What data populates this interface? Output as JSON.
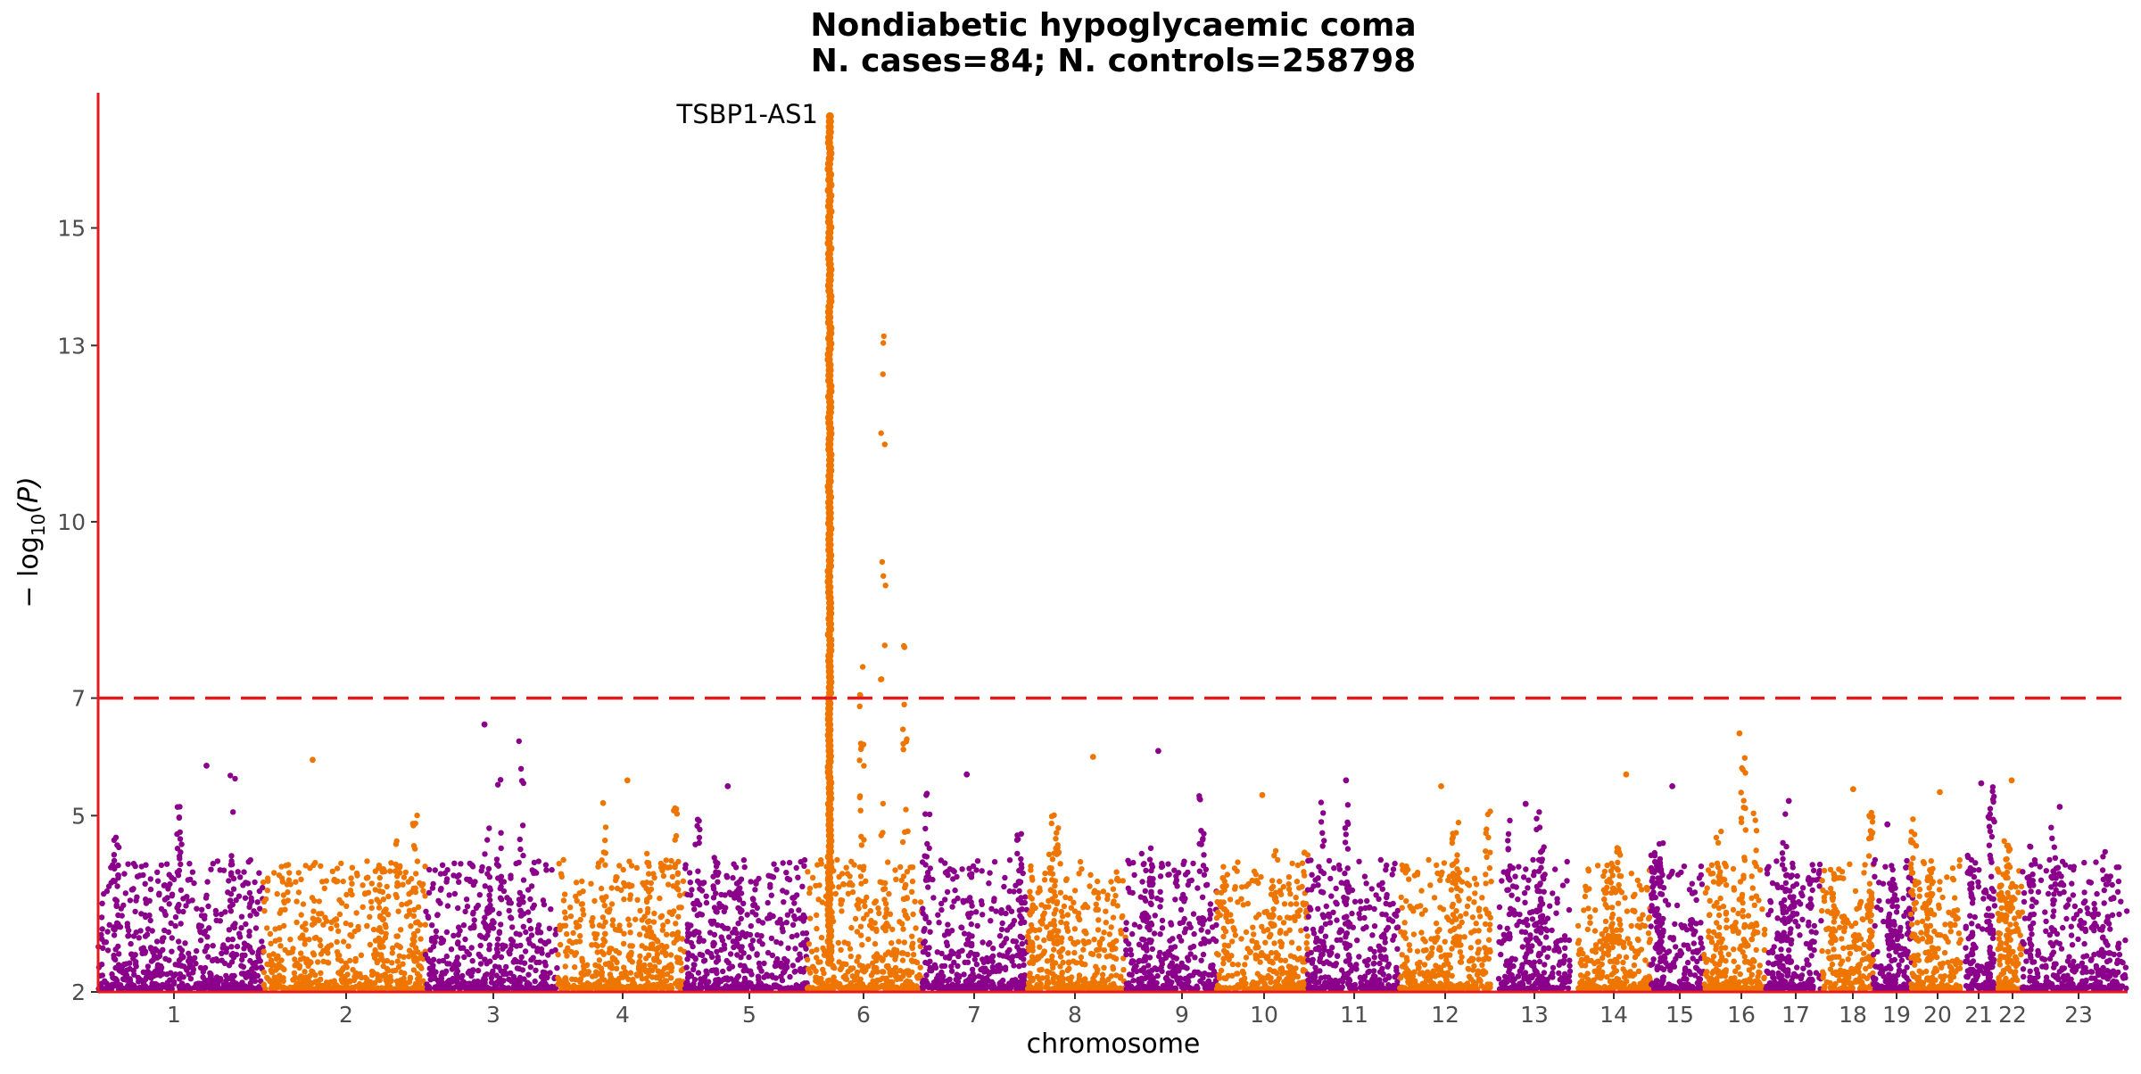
{
  "chart_data": {
    "type": "scatter",
    "subtype": "manhattan",
    "title": "Nondiabetic hypoglycaemic coma",
    "subtitle": "N. cases=84; N. controls=258798",
    "xlabel": "chromosome",
    "ylabel_main": "− log",
    "ylabel_sub": "10",
    "ylabel_var": "(P)",
    "y_scale": "-log10 transformed",
    "ylim": [
      2,
      17.3
    ],
    "y_ticks": [
      2,
      5,
      7,
      10,
      13,
      15
    ],
    "y_tick_labels": [
      "2",
      "5",
      "7",
      "10",
      "13",
      "15"
    ],
    "significance_line": 7,
    "colors": {
      "odd_chromosome": "#8B008B",
      "even_chromosome": "#EE7600",
      "threshold": "#e41a1c",
      "axis": "#e41a1c"
    },
    "chromosomes": [
      {
        "label": "1",
        "max": 5.85
      },
      {
        "label": "2",
        "max": 5.95
      },
      {
        "label": "3",
        "max": 6.55
      },
      {
        "label": "4",
        "max": 5.6
      },
      {
        "label": "5",
        "max": 5.5
      },
      {
        "label": "6",
        "max": 16.95
      },
      {
        "label": "7",
        "max": 5.7
      },
      {
        "label": "8",
        "max": 6.0
      },
      {
        "label": "9",
        "max": 6.1
      },
      {
        "label": "10",
        "max": 5.35
      },
      {
        "label": "11",
        "max": 5.6
      },
      {
        "label": "12",
        "max": 5.5
      },
      {
        "label": "13",
        "max": 5.2
      },
      {
        "label": "14",
        "max": 5.7
      },
      {
        "label": "15",
        "max": 5.5
      },
      {
        "label": "16",
        "max": 6.4
      },
      {
        "label": "17",
        "max": 5.25
      },
      {
        "label": "18",
        "max": 5.45
      },
      {
        "label": "19",
        "max": 4.85
      },
      {
        "label": "20",
        "max": 5.4
      },
      {
        "label": "21",
        "max": 5.55
      },
      {
        "label": "22",
        "max": 5.6
      },
      {
        "label": "23",
        "max": 5.15
      }
    ],
    "top_hit": {
      "label": "TSBP1-AS1",
      "chromosome": "6",
      "value": 16.95
    }
  }
}
